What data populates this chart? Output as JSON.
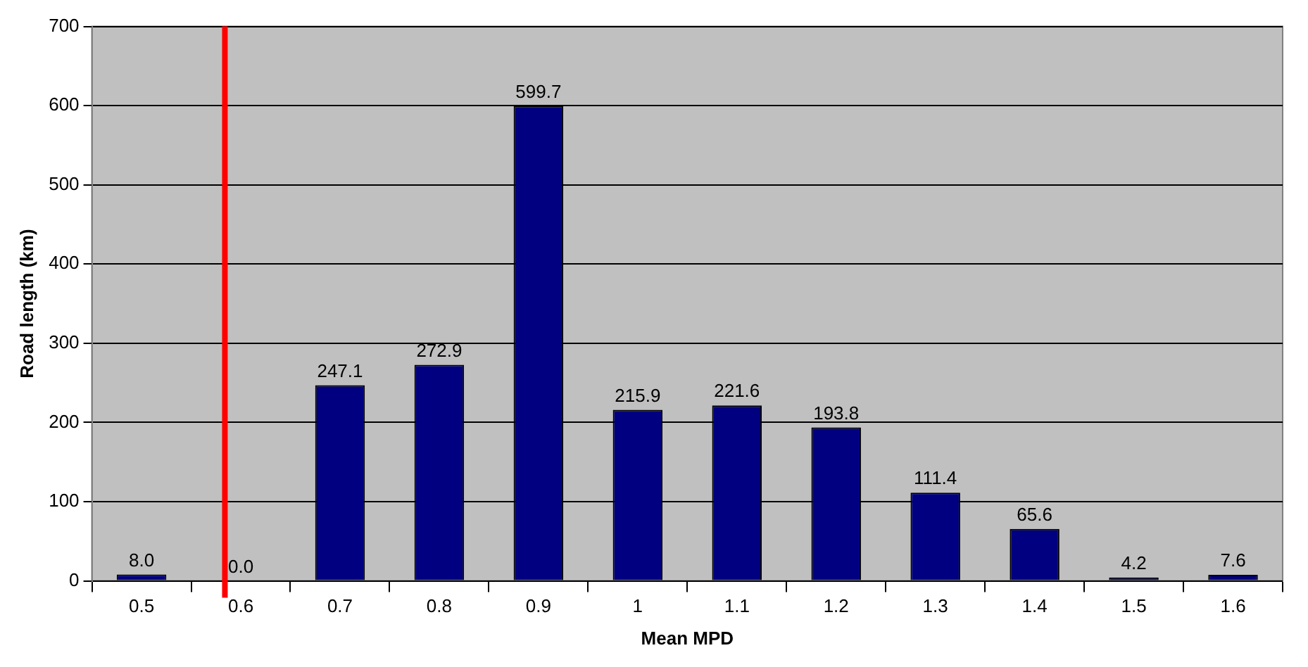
{
  "chart_data": {
    "type": "bar",
    "xlabel": "Mean MPD",
    "ylabel": "Road length (km)",
    "x": [
      0.5,
      0.6,
      0.7,
      0.8,
      0.9,
      1,
      1.1,
      1.2,
      1.3,
      1.4,
      1.5,
      1.6
    ],
    "values": [
      8.0,
      0.0,
      247.1,
      272.9,
      599.7,
      215.9,
      221.6,
      193.8,
      111.4,
      65.6,
      4.2,
      7.6
    ],
    "value_labels": [
      "8.0",
      "0.0",
      "247.1",
      "272.9",
      "599.7",
      "215.9",
      "221.6",
      "193.8",
      "111.4",
      "65.6",
      "4.2",
      "7.6"
    ],
    "color": "#000080",
    "xlim": [
      0.45,
      1.65
    ],
    "xticks": [
      0.5,
      0.6,
      0.7,
      0.8,
      0.9,
      1,
      1.1,
      1.2,
      1.3,
      1.4,
      1.5,
      1.6
    ],
    "ylim": [
      0,
      700
    ],
    "yticks": [
      0,
      100,
      200,
      300,
      400,
      500,
      600,
      700
    ],
    "grid": "y",
    "legend": false,
    "ref_lines": [
      {
        "axis": "x",
        "value": 0.584,
        "color": "#ff0000"
      }
    ]
  }
}
